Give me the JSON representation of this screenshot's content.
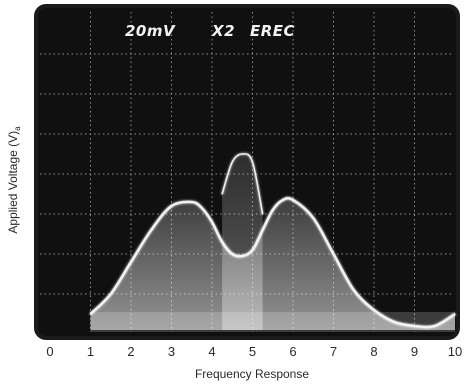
{
  "chart_data": {
    "type": "area",
    "title": "",
    "xlabel": "Frequency Response",
    "ylabel": "Applied Voltage (V)",
    "ylabel_subscript": "a",
    "screen_labels": [
      "20mV",
      "X2",
      "EREC"
    ],
    "x_ticks": [
      "0",
      "1",
      "2",
      "3",
      "4",
      "5",
      "6",
      "7",
      "8",
      "9",
      "10"
    ],
    "xlim": [
      0,
      10
    ],
    "ylim": [
      0,
      8
    ],
    "grid": true,
    "series": [
      {
        "x": [
          1.0,
          1.5,
          2.0,
          2.5,
          3.0,
          3.5,
          3.75,
          4.0,
          4.25,
          4.5,
          4.75,
          5.0,
          5.25,
          5.5,
          5.75,
          6.0,
          6.5,
          7.0,
          7.5,
          8.0,
          8.5,
          9.0,
          9.5,
          10.0
        ],
        "values": [
          0.5,
          1.0,
          1.8,
          2.6,
          3.2,
          3.3,
          3.15,
          2.8,
          2.3,
          2.0,
          1.95,
          2.1,
          2.6,
          3.1,
          3.35,
          3.35,
          2.9,
          2.0,
          1.1,
          0.6,
          0.3,
          0.2,
          0.2,
          0.5
        ]
      },
      {
        "x": [
          4.25,
          4.5,
          4.75,
          5.0,
          5.25
        ],
        "values": [
          3.5,
          4.3,
          4.5,
          4.3,
          3.0
        ]
      }
    ],
    "colors": {
      "screen": "#101010",
      "bezel": "#1a1a1a",
      "grid": "#b8b8b8",
      "trace": "#f4f4f4"
    }
  }
}
